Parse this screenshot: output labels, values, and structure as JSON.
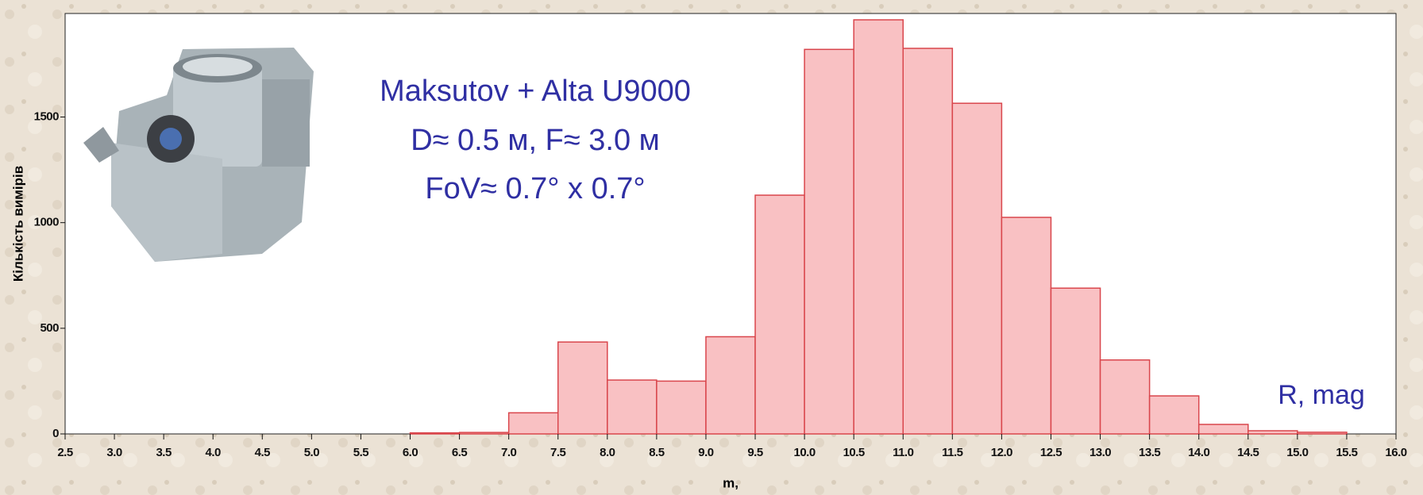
{
  "chart_data": {
    "type": "histogram",
    "bins": [
      6.0,
      6.5,
      7.0,
      7.5,
      8.0,
      8.5,
      9.0,
      9.5,
      10.0,
      10.5,
      11.0,
      11.5,
      12.0,
      12.5,
      13.0,
      13.5,
      14.0,
      14.5,
      15.0,
      15.5
    ],
    "values": [
      5,
      7,
      100,
      435,
      255,
      250,
      460,
      1130,
      1820,
      1960,
      1825,
      1565,
      1025,
      690,
      350,
      180,
      45,
      15,
      8
    ],
    "color": "#f9c1c3",
    "edge_color": "#d9464c",
    "xlabel": "m,",
    "ylabel": "Кількість вимірів",
    "xlim": [
      2.5,
      16.0
    ],
    "ylim": [
      0,
      1990
    ],
    "xticks": [
      2.5,
      {
        "value": 3,
        "label": "3.0"
      },
      3.5,
      {
        "value": 4,
        "label": "4.0"
      },
      4.5,
      {
        "value": 5,
        "label": "5.0"
      },
      5.5,
      {
        "value": 6,
        "label": "6.0"
      },
      6.5,
      {
        "value": 7,
        "label": "7.0"
      },
      7.5,
      {
        "value": 8,
        "label": "8.0"
      },
      8.5,
      {
        "value": 9,
        "label": "9.0"
      },
      9.5,
      {
        "value": 10,
        "label": "10.0"
      },
      10.5,
      {
        "value": 11,
        "label": "11.0"
      },
      11.5,
      {
        "value": 12,
        "label": "12.0"
      },
      12.5,
      {
        "value": 13,
        "label": "13.0"
      },
      13.5,
      {
        "value": 14,
        "label": "14.0"
      },
      14.5,
      {
        "value": 15,
        "label": "15.0"
      },
      15.5,
      {
        "value": 16,
        "label": "16.0"
      }
    ],
    "yticks": [
      0,
      500,
      1000,
      1500
    ],
    "annotations": [
      "Maksutov + Alta U9000",
      "D≈ 0.5 м, F≈ 3.0 м",
      "FoV≈  0.7° x 0.7°",
      "R, mag"
    ]
  }
}
